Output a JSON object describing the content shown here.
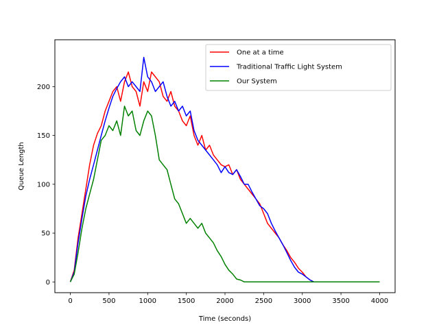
{
  "chart_data": {
    "type": "line",
    "title": "",
    "xlabel": "Time (seconds)",
    "ylabel": "Queue Length",
    "xlim": [
      -200,
      4200
    ],
    "ylim": [
      -11,
      248
    ],
    "xticks": [
      0,
      500,
      1000,
      1500,
      2000,
      2500,
      3000,
      3500,
      4000
    ],
    "yticks": [
      0,
      50,
      100,
      150,
      200
    ],
    "grid": false,
    "legend_position": "top-right",
    "series": [
      {
        "name": "One at a time",
        "color": "#ff0000",
        "x": [
          0,
          50,
          100,
          150,
          200,
          250,
          300,
          350,
          400,
          450,
          500,
          550,
          600,
          650,
          700,
          750,
          800,
          850,
          900,
          950,
          1000,
          1050,
          1100,
          1150,
          1200,
          1250,
          1300,
          1350,
          1400,
          1450,
          1500,
          1550,
          1600,
          1650,
          1700,
          1750,
          1800,
          1850,
          1900,
          1950,
          2000,
          2050,
          2100,
          2150,
          2200,
          2250,
          2300,
          2350,
          2400,
          2450,
          2500,
          2550,
          2600,
          2650,
          2700,
          2750,
          2800,
          2850,
          2900,
          2950,
          3000,
          3050,
          3100,
          3150,
          3200,
          3300,
          3500,
          4000
        ],
        "y": [
          0,
          12,
          45,
          70,
          95,
          120,
          140,
          152,
          160,
          175,
          185,
          195,
          200,
          185,
          205,
          215,
          200,
          195,
          180,
          205,
          195,
          215,
          210,
          205,
          190,
          185,
          195,
          180,
          175,
          165,
          160,
          170,
          150,
          140,
          150,
          135,
          140,
          130,
          125,
          120,
          118,
          120,
          110,
          115,
          105,
          100,
          95,
          90,
          85,
          80,
          70,
          60,
          55,
          50,
          45,
          38,
          32,
          25,
          20,
          14,
          10,
          5,
          2,
          0,
          0,
          0,
          0,
          0
        ]
      },
      {
        "name": "Traditional Traffic Light System",
        "color": "#0000ff",
        "x": [
          0,
          50,
          100,
          150,
          200,
          250,
          300,
          350,
          400,
          450,
          500,
          550,
          600,
          650,
          700,
          750,
          800,
          850,
          900,
          950,
          1000,
          1050,
          1100,
          1150,
          1200,
          1250,
          1300,
          1350,
          1400,
          1450,
          1500,
          1550,
          1600,
          1650,
          1700,
          1750,
          1800,
          1850,
          1900,
          1950,
          2000,
          2050,
          2100,
          2150,
          2200,
          2250,
          2300,
          2350,
          2400,
          2450,
          2500,
          2550,
          2600,
          2650,
          2700,
          2750,
          2800,
          2850,
          2900,
          2950,
          3000,
          3050,
          3100,
          3150,
          3200,
          3300,
          3500,
          4000
        ],
        "y": [
          0,
          10,
          40,
          65,
          88,
          105,
          120,
          135,
          150,
          165,
          178,
          190,
          198,
          205,
          210,
          200,
          205,
          200,
          195,
          230,
          210,
          205,
          195,
          200,
          205,
          190,
          180,
          185,
          175,
          180,
          170,
          175,
          155,
          145,
          140,
          135,
          130,
          125,
          120,
          112,
          118,
          112,
          110,
          115,
          108,
          100,
          100,
          92,
          85,
          78,
          75,
          70,
          60,
          52,
          45,
          38,
          30,
          22,
          15,
          10,
          8,
          5,
          2,
          0,
          0,
          0,
          0,
          0
        ]
      },
      {
        "name": "Our System",
        "color": "#008000",
        "x": [
          0,
          50,
          100,
          150,
          200,
          250,
          300,
          350,
          400,
          450,
          500,
          550,
          600,
          650,
          700,
          750,
          800,
          850,
          900,
          950,
          1000,
          1050,
          1100,
          1150,
          1200,
          1250,
          1300,
          1350,
          1400,
          1450,
          1500,
          1550,
          1600,
          1650,
          1700,
          1750,
          1800,
          1850,
          1900,
          1950,
          2000,
          2050,
          2100,
          2150,
          2200,
          2250,
          2300,
          2500,
          3000,
          3500,
          4000
        ],
        "y": [
          0,
          8,
          30,
          55,
          75,
          90,
          105,
          125,
          145,
          150,
          160,
          155,
          165,
          150,
          180,
          170,
          175,
          155,
          150,
          165,
          175,
          170,
          150,
          125,
          120,
          115,
          100,
          85,
          80,
          70,
          60,
          65,
          60,
          55,
          60,
          50,
          45,
          40,
          32,
          26,
          18,
          12,
          8,
          3,
          2,
          0,
          0,
          0,
          0,
          0,
          0
        ]
      }
    ]
  }
}
